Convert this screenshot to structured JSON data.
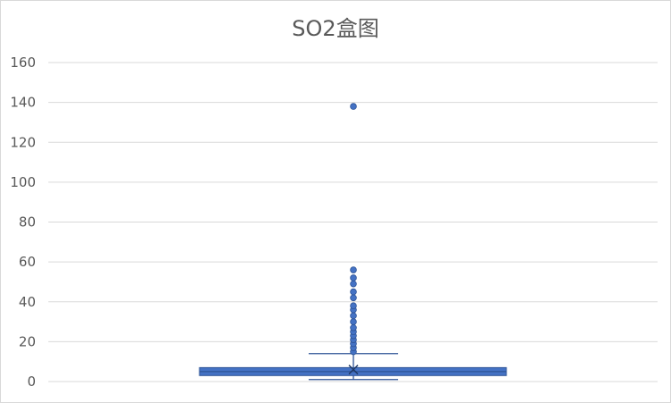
{
  "chart_data": {
    "type": "box",
    "title": "SO2盒图",
    "xlabel": "",
    "ylabel": "",
    "ylim": [
      0,
      160
    ],
    "yticks": [
      0,
      20,
      40,
      60,
      80,
      100,
      120,
      140,
      160
    ],
    "grid": true,
    "legend": "none",
    "box": {
      "min": 1,
      "q1": 3,
      "median": 5,
      "q3": 7,
      "whisker_high": 14,
      "mean": 6
    },
    "outliers": [
      15,
      17,
      19,
      21,
      23,
      25,
      27,
      30,
      33,
      36,
      38,
      42,
      45,
      49,
      52,
      56,
      138
    ],
    "colors": {
      "box_fill": "#4472c4",
      "box_edge": "#2f5597",
      "grid": "#d9d9d9",
      "text": "#595959"
    }
  }
}
